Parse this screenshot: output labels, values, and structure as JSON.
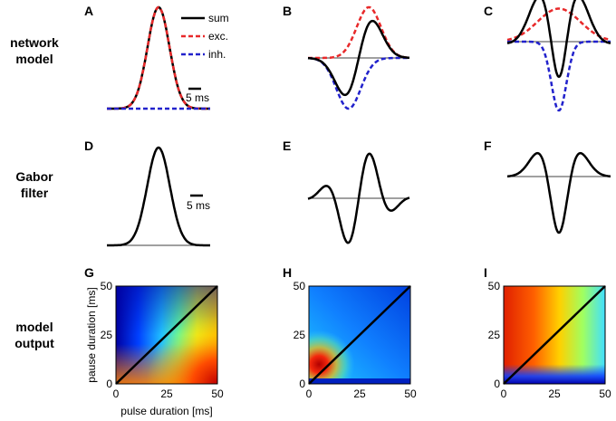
{
  "row_labels": {
    "network": [
      "network",
      "model"
    ],
    "gabor": [
      "Gabor",
      "filter"
    ],
    "output": [
      "model",
      "output"
    ]
  },
  "panels": [
    "A",
    "B",
    "C",
    "D",
    "E",
    "F",
    "G",
    "H",
    "I"
  ],
  "legend": {
    "sum": "sum",
    "exc": "exc.",
    "inh": "inh."
  },
  "scale_bar": "5 ms",
  "axes": {
    "xlabel": "pulse duration [ms]",
    "ylabel": "pause duration [ms]",
    "ticks": [
      "0",
      "25",
      "50"
    ]
  },
  "colors": {
    "sum": "#000000",
    "exc": "#e8292a",
    "inh": "#2222cc"
  },
  "chart_data": [
    {
      "type": "line",
      "panel": "A",
      "title": "network model",
      "series": [
        {
          "name": "sum",
          "shape": "gaussian",
          "amplitude": 1.0,
          "center": 0,
          "width": 3.5
        },
        {
          "name": "exc.",
          "shape": "gaussian",
          "amplitude": 1.0,
          "center": 0,
          "width": 3.5
        },
        {
          "name": "inh.",
          "shape": "flat",
          "amplitude": 0
        }
      ]
    },
    {
      "type": "line",
      "panel": "B",
      "title": "network model",
      "series": [
        {
          "name": "sum",
          "shape": "exc-minus-inh"
        },
        {
          "name": "exc.",
          "shape": "gaussian",
          "amplitude": 1.0,
          "center": 2,
          "width": 5
        },
        {
          "name": "inh.",
          "shape": "gaussian",
          "amplitude": -1.0,
          "center": -2,
          "width": 5
        }
      ]
    },
    {
      "type": "line",
      "panel": "C",
      "title": "network model",
      "series": [
        {
          "name": "sum",
          "shape": "exc-minus-inh"
        },
        {
          "name": "exc.",
          "shape": "gaussian",
          "amplitude": 0.5,
          "center": 0,
          "width": 9
        },
        {
          "name": "inh.",
          "shape": "gaussian",
          "amplitude": -1.0,
          "center": 0,
          "width": 3
        }
      ]
    },
    {
      "type": "line",
      "panel": "D",
      "title": "Gabor filter",
      "phase": "even, positive"
    },
    {
      "type": "line",
      "panel": "E",
      "title": "Gabor filter",
      "phase": "odd"
    },
    {
      "type": "line",
      "panel": "F",
      "title": "Gabor filter",
      "phase": "even, negative"
    },
    {
      "type": "heatmap",
      "panel": "G",
      "title": "model output",
      "xlabel": "pulse duration [ms]",
      "ylabel": "pause duration [ms]",
      "xlim": [
        0,
        50
      ],
      "ylim": [
        0,
        50
      ],
      "pattern": "high for long pulses, short pauses"
    },
    {
      "type": "heatmap",
      "panel": "H",
      "title": "model output",
      "xlim": [
        0,
        50
      ],
      "ylim": [
        0,
        50
      ],
      "pattern": "peak near pulse 7 ms, pause 10 ms"
    },
    {
      "type": "heatmap",
      "panel": "I",
      "title": "model output",
      "xlim": [
        0,
        50
      ],
      "ylim": [
        0,
        50
      ],
      "pattern": "high for short pulses, long pauses"
    }
  ]
}
